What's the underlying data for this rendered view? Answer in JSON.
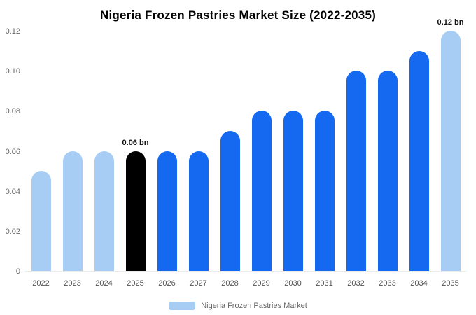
{
  "legend": {
    "label": "Nigeria Frozen Pastries Market",
    "swatch_color": "#a8cdf5"
  },
  "chart_data": {
    "type": "bar",
    "title": "Nigeria Frozen Pastries Market Size (2022-2035)",
    "xlabel": "",
    "ylabel": "",
    "ylim": [
      0,
      0.12
    ],
    "yticks": [
      0,
      0.02,
      0.04,
      0.06,
      0.08,
      0.1,
      0.12
    ],
    "ytick_labels": [
      "0",
      "0.02",
      "0.04",
      "0.06",
      "0.08",
      "0.10",
      "0.12"
    ],
    "categories": [
      "2022",
      "2023",
      "2024",
      "2025",
      "2026",
      "2027",
      "2028",
      "2029",
      "2030",
      "2031",
      "2032",
      "2033",
      "2034",
      "2035"
    ],
    "values": [
      0.05,
      0.06,
      0.06,
      0.06,
      0.06,
      0.06,
      0.07,
      0.08,
      0.08,
      0.08,
      0.1,
      0.1,
      0.11,
      0.12
    ],
    "bar_colors": [
      "#a8cdf5",
      "#a8cdf5",
      "#a8cdf5",
      "#000000",
      "#1569f0",
      "#1569f0",
      "#1569f0",
      "#1569f0",
      "#1569f0",
      "#1569f0",
      "#1569f0",
      "#1569f0",
      "#1569f0",
      "#a8cdf5"
    ],
    "annotations": [
      {
        "category": "2025",
        "text": "0.06 bn"
      },
      {
        "category": "2035",
        "text": "0.12 bn"
      }
    ],
    "colors": {
      "light_blue": "#a8cdf5",
      "bright_blue": "#1569f0",
      "highlight_black": "#000000"
    },
    "grid": false,
    "legend_position": "bottom"
  }
}
